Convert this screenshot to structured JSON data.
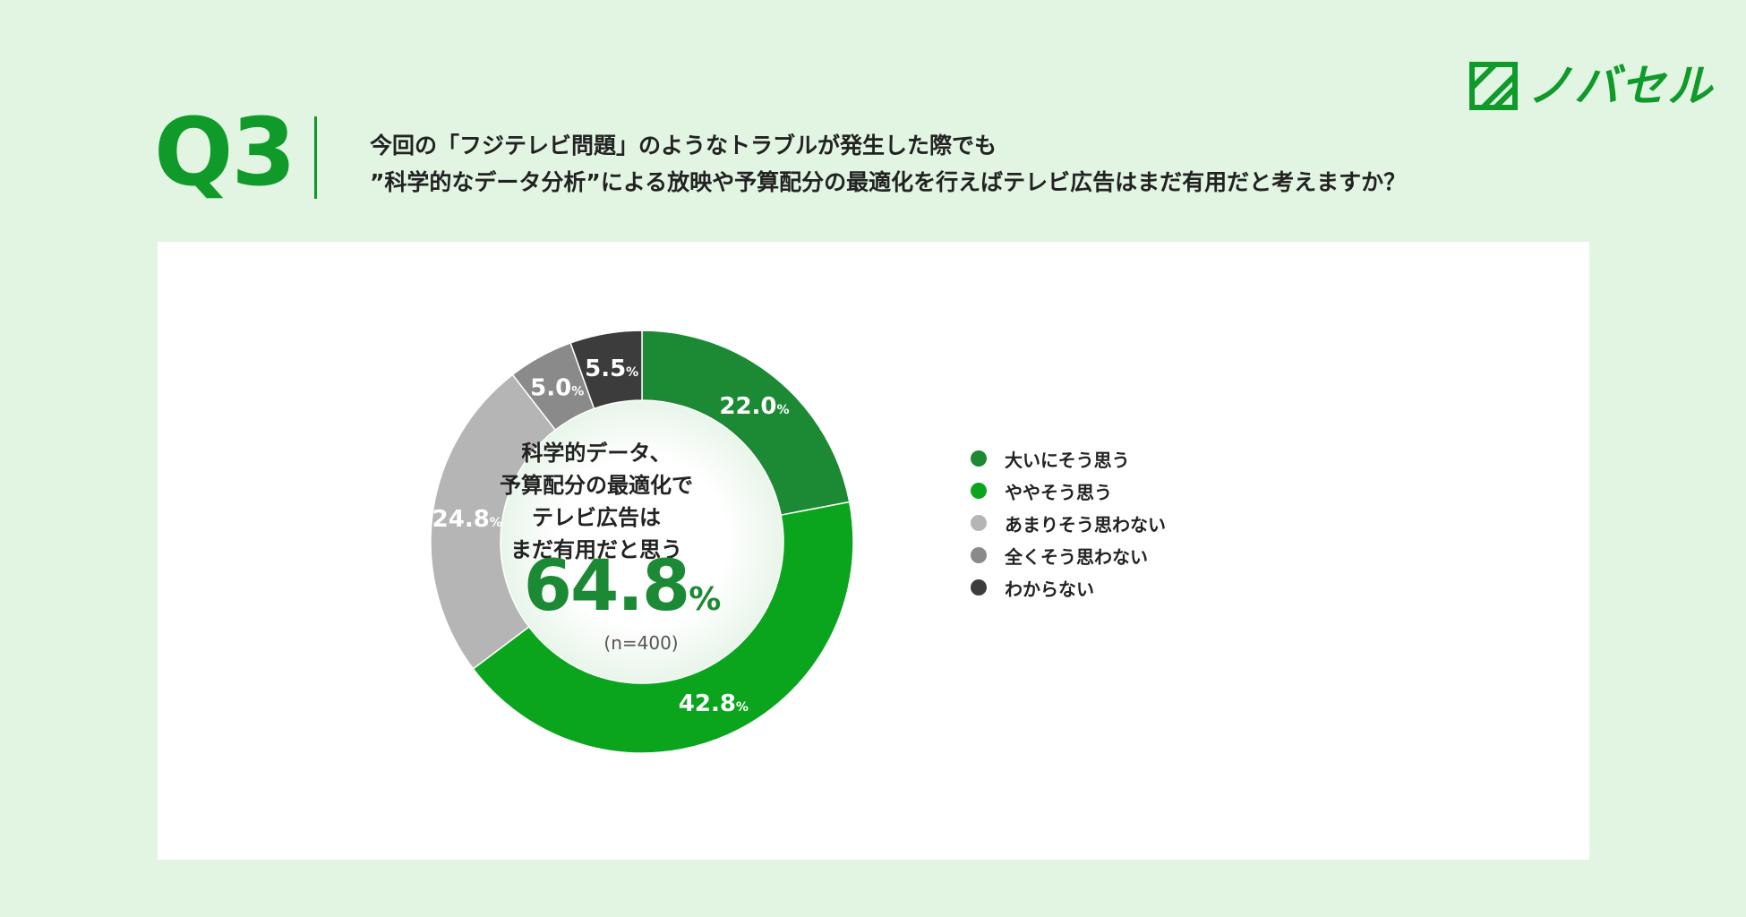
{
  "header": {
    "logo_text": "ノバセル",
    "question_number": "Q3",
    "question_lines": [
      "今回の「フジテレビ問題」のようなトラブルが発生した際でも",
      "”科学的なデータ分析”による放映や予算配分の最適化を行えばテレビ広告はまだ有用だと考えますか？"
    ]
  },
  "center": {
    "lines": [
      "科学的データ、",
      "予算配分の最適化で",
      "テレビ広告は",
      "まだ有用だと思う"
    ],
    "value": "64.8",
    "unit": "%",
    "n_label": "(n=400)"
  },
  "chart_data": {
    "type": "pie",
    "categories": [
      "大いにそう思う",
      "ややそう思う",
      "あまりそう思わない",
      "全くそう思わない",
      "わからない"
    ],
    "values": [
      22.0,
      42.8,
      24.8,
      5.0,
      5.5
    ],
    "value_labels": [
      "22.0",
      "42.8",
      "24.8",
      "5.0",
      "5.5"
    ],
    "unit": "%",
    "colors": [
      "#1c8a34",
      "#0aa51c",
      "#b5b5b5",
      "#8a8a8a",
      "#3c3c3c"
    ],
    "legend_placement": "right"
  }
}
